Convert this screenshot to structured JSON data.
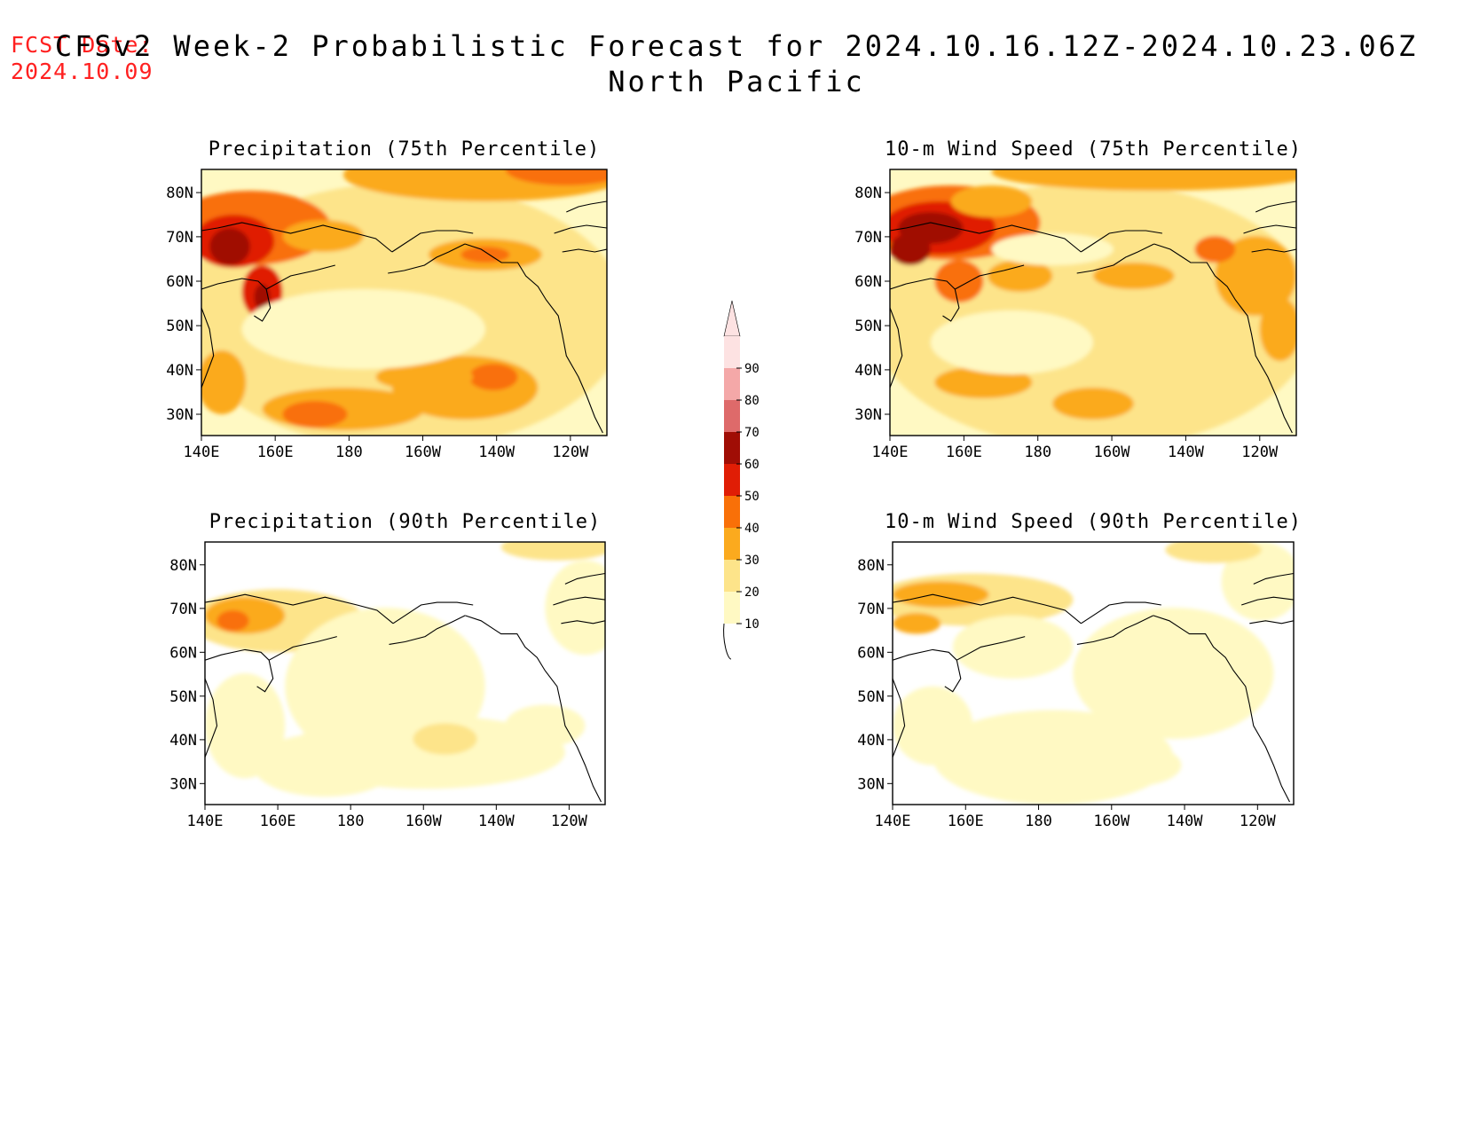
{
  "header": {
    "fcst_label": "FCST Date:",
    "fcst_date": "2024.10.09",
    "title": "CFSv2 Week-2 Probabilistic Forecast for 2024.10.16.12Z-2024.10.23.06Z",
    "region": "North Pacific"
  },
  "axes": {
    "lat_labels": [
      "80N",
      "70N",
      "60N",
      "50N",
      "40N",
      "30N"
    ],
    "lon_labels": [
      "140E",
      "160E",
      "180",
      "160W",
      "140W",
      "120W"
    ]
  },
  "panels": [
    {
      "id": "precip-75",
      "title": "Precipitation (75th Percentile)",
      "variable": "precipitation",
      "percentile": 75
    },
    {
      "id": "wind-75",
      "title": "10-m Wind Speed (75th Percentile)",
      "variable": "10-m wind speed",
      "percentile": 75
    },
    {
      "id": "precip-90",
      "title": "Precipitation (90th Percentile)",
      "variable": "precipitation",
      "percentile": 90
    },
    {
      "id": "wind-90",
      "title": "10-m Wind Speed (90th Percentile)",
      "variable": "10-m wind speed",
      "percentile": 90
    }
  ],
  "colorbar": {
    "levels": [
      "10",
      "20",
      "30",
      "40",
      "50",
      "60",
      "70",
      "80",
      "90"
    ],
    "colors": [
      "#fff9c3",
      "#fde48a",
      "#fbaa1e",
      "#f97008",
      "#e01d05",
      "#a00d05",
      "#de6a6a",
      "#f4a8a8",
      "#fde2e2"
    ]
  }
}
